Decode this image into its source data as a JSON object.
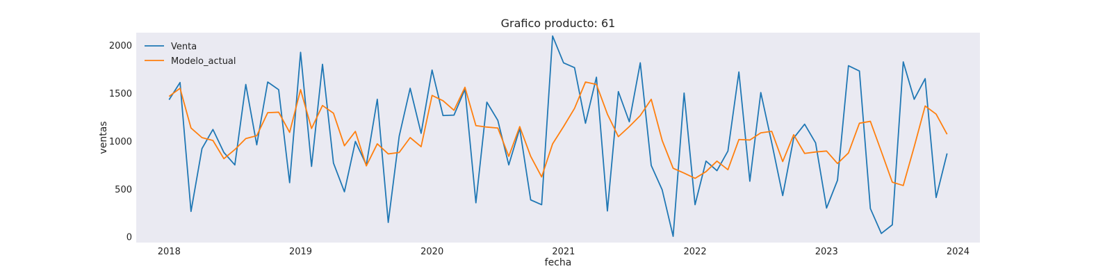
{
  "chart_data": {
    "type": "line",
    "title": "Grafico producto: 61",
    "xlabel": "fecha",
    "ylabel": "ventas",
    "x_ticks": [
      "2018",
      "2019",
      "2020",
      "2021",
      "2022",
      "2023",
      "2024"
    ],
    "y_ticks": [
      "0",
      "500",
      "1000",
      "1500",
      "2000"
    ],
    "ylim": [
      -60,
      2130
    ],
    "xlim": [
      "2017-10",
      "2024-03"
    ],
    "grid": false,
    "legend_position": "top-left",
    "x": [
      "2018-01",
      "2018-02",
      "2018-03",
      "2018-04",
      "2018-05",
      "2018-06",
      "2018-07",
      "2018-08",
      "2018-09",
      "2018-10",
      "2018-11",
      "2018-12",
      "2019-01",
      "2019-02",
      "2019-03",
      "2019-04",
      "2019-05",
      "2019-06",
      "2019-07",
      "2019-08",
      "2019-09",
      "2019-10",
      "2019-11",
      "2019-12",
      "2020-01",
      "2020-02",
      "2020-03",
      "2020-04",
      "2020-05",
      "2020-06",
      "2020-07",
      "2020-08",
      "2020-09",
      "2020-10",
      "2020-11",
      "2020-12",
      "2021-01",
      "2021-02",
      "2021-03",
      "2021-04",
      "2021-05",
      "2021-06",
      "2021-07",
      "2021-08",
      "2021-09",
      "2021-10",
      "2021-11",
      "2021-12",
      "2022-01",
      "2022-02",
      "2022-03",
      "2022-04",
      "2022-05",
      "2022-06",
      "2022-07",
      "2022-08",
      "2022-09",
      "2022-10",
      "2022-11",
      "2022-12",
      "2023-01",
      "2023-02",
      "2023-03",
      "2023-04",
      "2023-05",
      "2023-06",
      "2023-07",
      "2023-08",
      "2023-09",
      "2023-10",
      "2023-11",
      "2023-12"
    ],
    "series": [
      {
        "name": "Venta",
        "color": "#1f77b4",
        "values": [
          1430,
          1610,
          265,
          920,
          1120,
          880,
          750,
          1590,
          960,
          1615,
          1535,
          565,
          1925,
          735,
          1800,
          770,
          470,
          995,
          750,
          1435,
          150,
          1050,
          1550,
          1080,
          1740,
          1265,
          1270,
          1540,
          355,
          1405,
          1215,
          750,
          1130,
          385,
          335,
          2095,
          1815,
          1765,
          1185,
          1665,
          270,
          1515,
          1200,
          1815,
          745,
          490,
          5,
          1500,
          335,
          790,
          690,
          895,
          1720,
          580,
          1505,
          980,
          430,
          1030,
          1175,
          980,
          300,
          590,
          1785,
          1730,
          295,
          35,
          125,
          1825,
          1435,
          1650,
          410,
          870
        ]
      },
      {
        "name": "Modelo_actual",
        "color": "#ff7f0e",
        "values": [
          1465,
          1550,
          1135,
          1035,
          1005,
          815,
          910,
          1025,
          1055,
          1295,
          1300,
          1090,
          1535,
          1130,
          1370,
          1290,
          950,
          1100,
          740,
          970,
          865,
          880,
          1035,
          940,
          1475,
          1420,
          1320,
          1560,
          1160,
          1145,
          1135,
          840,
          1150,
          840,
          625,
          970,
          1150,
          1340,
          1615,
          1590,
          1280,
          1045,
          1150,
          1265,
          1435,
          1005,
          715,
          665,
          610,
          680,
          790,
          700,
          1015,
          1010,
          1085,
          1100,
          785,
          1065,
          870,
          885,
          895,
          765,
          875,
          1185,
          1205,
          890,
          570,
          535,
          940,
          1365,
          1280,
          1070
        ]
      }
    ]
  }
}
